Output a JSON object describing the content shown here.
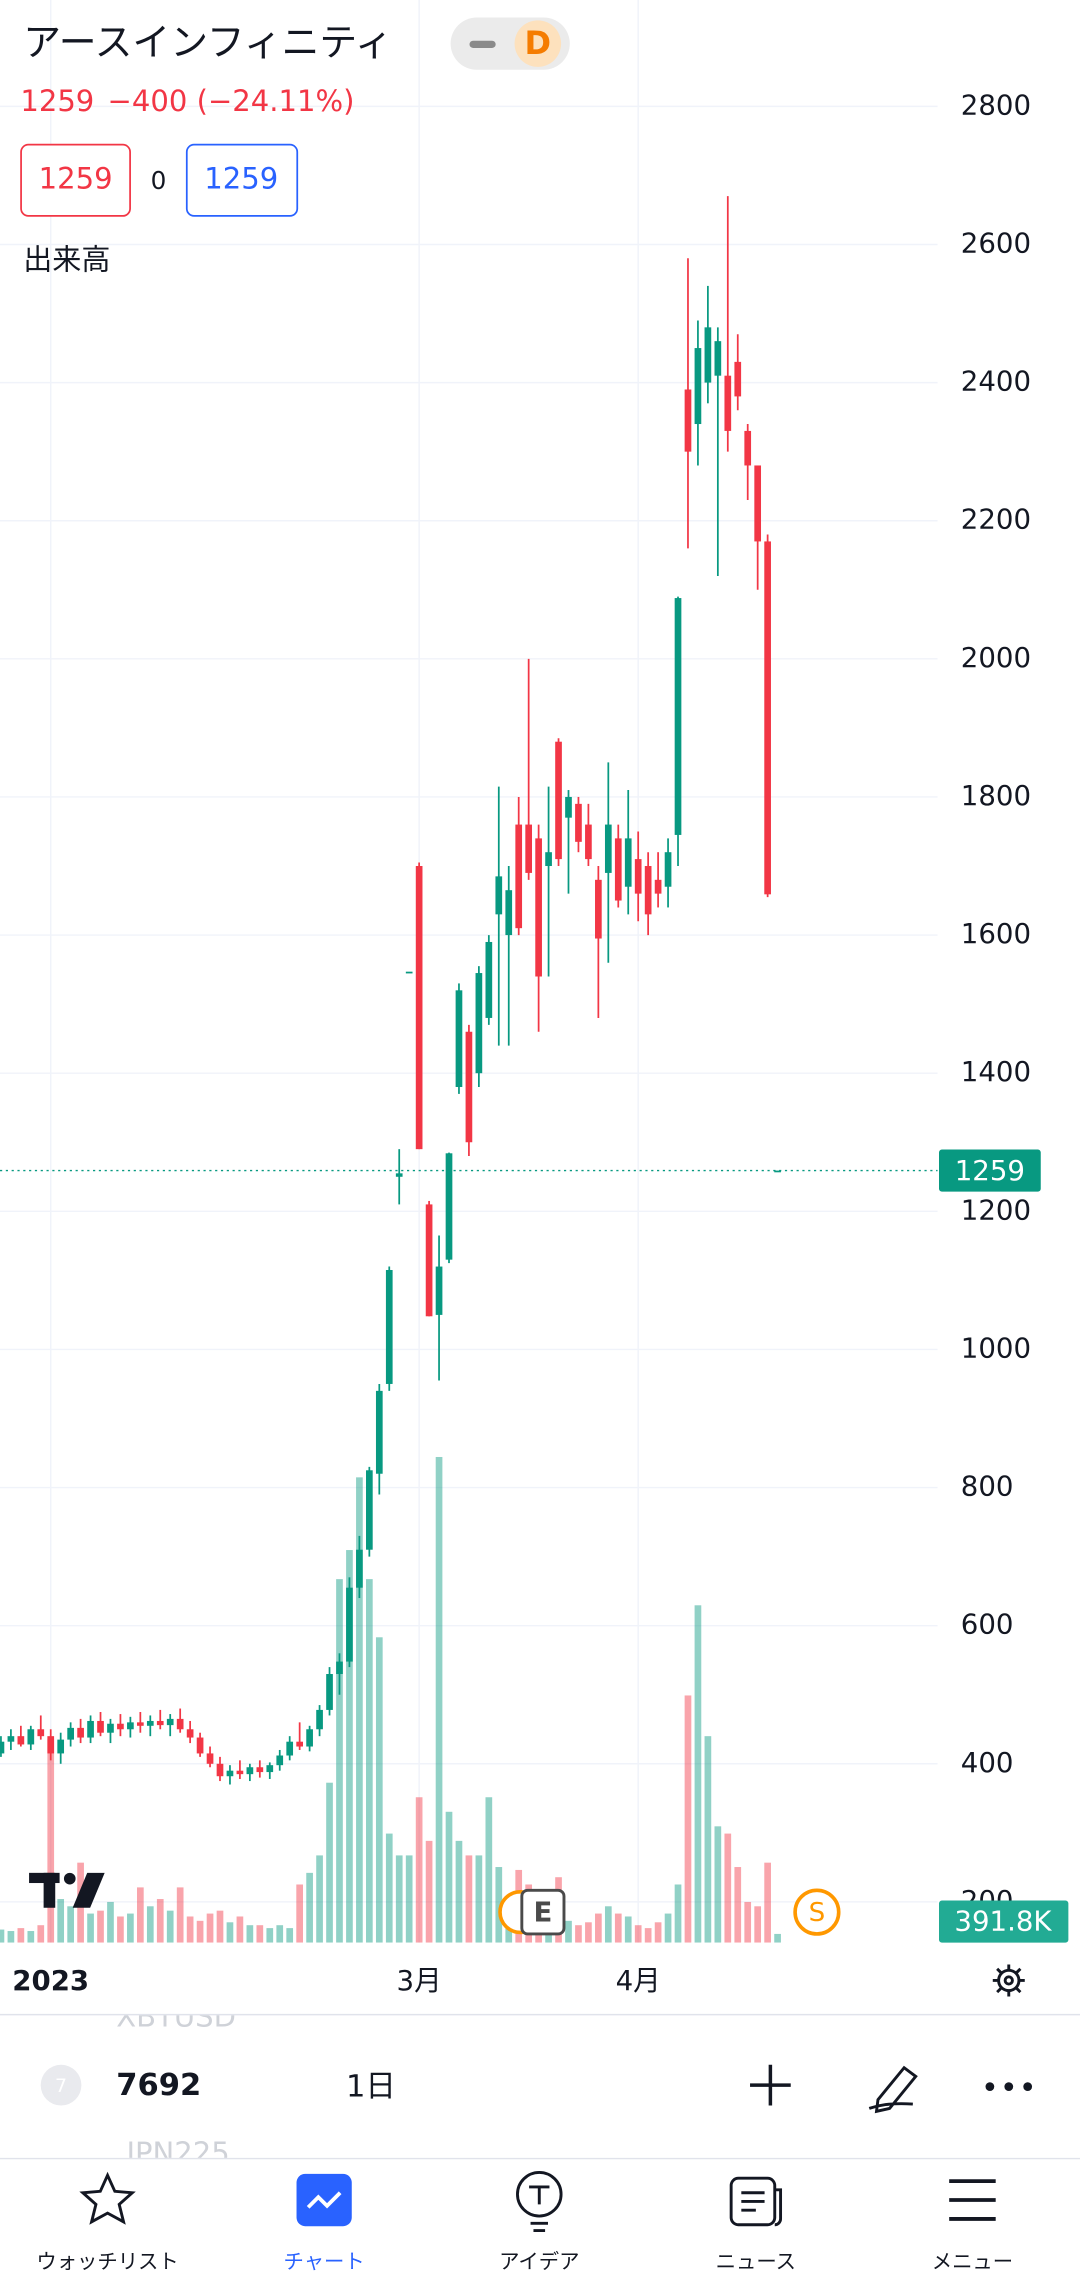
{
  "header": {
    "title": "アースインフィニティ",
    "badge": "D",
    "price": "1259",
    "change": "−400 (−24.11%)",
    "bid": "1259",
    "spread": "0",
    "ask": "1259",
    "indicator": "出来高"
  },
  "events": [
    "E",
    "S"
  ],
  "chart_data": {
    "type": "candlestick",
    "categories": [
      null,
      null,
      null,
      null,
      null,
      null,
      "2023",
      null,
      null,
      null,
      null,
      null,
      null,
      null,
      null,
      null,
      null,
      null,
      null,
      null,
      null,
      null,
      null,
      null,
      null,
      null,
      null,
      null,
      null,
      null,
      null,
      null,
      null,
      null,
      null,
      null,
      null,
      null,
      null,
      null,
      null,
      null,
      null,
      "3月",
      null,
      null,
      null,
      null,
      null,
      null,
      null,
      null,
      null,
      null,
      null,
      null,
      null,
      null,
      null,
      null,
      null,
      null,
      null,
      null,
      null,
      "4月",
      null,
      null,
      null,
      null,
      null,
      null,
      null,
      null,
      null,
      null,
      null,
      null,
      null,
      null
    ],
    "open": [
      420,
      415,
      432,
      440,
      428,
      450,
      440,
      415,
      435,
      452,
      438,
      462,
      445,
      458,
      450,
      460,
      455,
      462,
      456,
      465,
      450,
      438,
      415,
      400,
      382,
      390,
      385,
      395,
      388,
      398,
      412,
      432,
      425,
      450,
      478,
      530,
      548,
      655,
      710,
      820,
      950,
      1250,
      1547,
      1700,
      1210,
      1050,
      1130,
      1380,
      1460,
      1400,
      1480,
      1630,
      1600,
      1760,
      1760,
      1740,
      1700,
      1880,
      1770,
      1790,
      1760,
      1680,
      1690,
      1740,
      1670,
      1710,
      1700,
      1680,
      1670,
      1745,
      2390,
      2340,
      2400,
      2410,
      2410,
      2430,
      2330,
      2280,
      2170,
      1259
    ],
    "high": [
      435,
      440,
      450,
      455,
      455,
      470,
      450,
      445,
      460,
      465,
      470,
      475,
      465,
      472,
      468,
      475,
      470,
      478,
      472,
      480,
      462,
      445,
      425,
      410,
      398,
      405,
      400,
      405,
      402,
      420,
      440,
      460,
      455,
      485,
      540,
      560,
      670,
      730,
      830,
      950,
      1120,
      1290,
      1547,
      1705,
      1215,
      1165,
      1285,
      1530,
      1470,
      1555,
      1600,
      1815,
      1700,
      1800,
      2000,
      1760,
      1815,
      1885,
      1810,
      1800,
      1790,
      1700,
      1850,
      1760,
      1810,
      1750,
      1720,
      1720,
      1740,
      2090,
      2580,
      2490,
      2540,
      2480,
      2670,
      2470,
      2340,
      2280,
      2180,
      1259
    ],
    "low": [
      405,
      410,
      420,
      425,
      420,
      435,
      405,
      400,
      425,
      430,
      430,
      440,
      430,
      440,
      438,
      445,
      440,
      450,
      440,
      445,
      430,
      410,
      395,
      375,
      370,
      378,
      375,
      380,
      378,
      390,
      405,
      420,
      418,
      440,
      470,
      500,
      540,
      640,
      700,
      790,
      940,
      1210,
      1547,
      1290,
      1048,
      955,
      1125,
      1370,
      1280,
      1380,
      1470,
      1440,
      1440,
      1600,
      1680,
      1460,
      1540,
      1700,
      1660,
      1720,
      1700,
      1480,
      1560,
      1640,
      1630,
      1620,
      1600,
      1640,
      1640,
      1700,
      2160,
      2280,
      2370,
      2120,
      2300,
      2360,
      2230,
      2100,
      1655,
      1259
    ],
    "close": [
      415,
      432,
      440,
      428,
      450,
      440,
      415,
      435,
      452,
      438,
      462,
      445,
      458,
      450,
      460,
      455,
      462,
      456,
      465,
      450,
      438,
      415,
      400,
      382,
      390,
      385,
      395,
      388,
      398,
      412,
      432,
      425,
      450,
      478,
      530,
      548,
      655,
      710,
      825,
      940,
      1115,
      1255,
      1547,
      1290,
      1048,
      1120,
      1284,
      1520,
      1300,
      1545,
      1590,
      1685,
      1665,
      1610,
      1690,
      1540,
      1720,
      1710,
      1800,
      1735,
      1710,
      1595,
      1760,
      1650,
      1740,
      1660,
      1630,
      1660,
      1720,
      2088,
      2300,
      2450,
      2480,
      2460,
      2330,
      2380,
      2280,
      2170,
      1659,
      1259
    ],
    "volume": {
      "values": [
        653000,
        588000,
        522000,
        653000,
        522000,
        784000,
        9142000,
        1959000,
        1633000,
        3592000,
        1306000,
        1437000,
        1828000,
        1175000,
        1306000,
        2481000,
        1633000,
        1959000,
        1437000,
        2481000,
        1175000,
        980000,
        1306000,
        1437000,
        914000,
        1175000,
        784000,
        784000,
        653000,
        784000,
        653000,
        2612000,
        3134000,
        3918000,
        7183000,
        16325000,
        17631000,
        20896000,
        16325000,
        13713000,
        4898000,
        3918000,
        3918000,
        6530000,
        4571000,
        21810000,
        5877000,
        4571000,
        3918000,
        3918000,
        6530000,
        3396000,
        1959000,
        3265000,
        2612000,
        2286000,
        1633000,
        2939000,
        980000,
        784000,
        914000,
        1306000,
        1633000,
        1306000,
        1175000,
        784000,
        653000,
        914000,
        1306000,
        2612000,
        11101000,
        15150000,
        9273000,
        5224000,
        4898000,
        3396000,
        1828000,
        1633000,
        3592000,
        391800
      ],
      "value_labels": [
        null,
        null,
        null,
        null,
        null,
        null,
        null,
        null,
        null,
        null,
        null,
        null,
        null,
        null,
        null,
        null,
        null,
        null,
        null,
        null,
        null,
        null,
        null,
        null,
        null,
        null,
        null,
        null,
        null,
        null,
        null,
        null,
        null,
        null,
        null,
        null,
        null,
        null,
        null,
        null,
        null,
        null,
        null,
        null,
        null,
        null,
        null,
        null,
        null,
        null,
        null,
        null,
        null,
        null,
        null,
        null,
        null,
        null,
        null,
        null,
        null,
        null,
        null,
        null,
        null,
        null,
        null,
        null,
        null,
        null,
        null,
        null,
        null,
        null,
        null,
        null,
        null,
        null,
        null,
        "391.8K"
      ]
    },
    "price_line": 1259,
    "ylim": [
      141,
      2954
    ],
    "yticks": [
      200,
      400,
      600,
      800,
      1000,
      1200,
      1400,
      1600,
      1800,
      2000,
      2200,
      2400,
      2600,
      2800
    ],
    "grid": true,
    "up_color": "#089981",
    "down_color": "#f23645"
  },
  "toolbar": {
    "symbol_above": "XBTUSD",
    "badge": "7",
    "symbol": "7692",
    "interval": "1日",
    "symbol_below": "JPN225"
  },
  "nav": [
    "ウォッチリスト",
    "チャート",
    "アイデア",
    "ニュース",
    "メニュー"
  ]
}
